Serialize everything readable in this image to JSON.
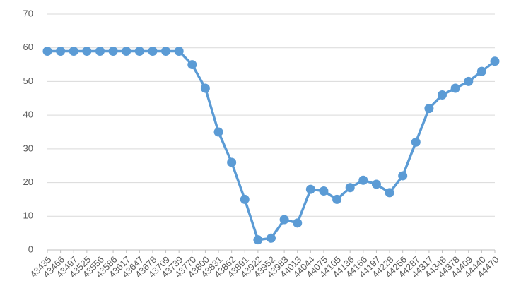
{
  "chart_data": {
    "type": "line",
    "categories": [
      "43435",
      "43466",
      "43497",
      "43525",
      "43556",
      "43586",
      "43617",
      "43647",
      "43678",
      "43709",
      "43739",
      "43770",
      "43800",
      "43831",
      "43862",
      "43891",
      "43922",
      "43952",
      "43983",
      "44013",
      "44044",
      "44075",
      "44105",
      "44136",
      "44166",
      "44197",
      "44228",
      "44256",
      "44287",
      "44317",
      "44348",
      "44378",
      "44409",
      "44440",
      "44470"
    ],
    "series": [
      {
        "color": "#5b9bd5",
        "values": [
          59,
          59,
          59,
          59,
          59,
          59,
          59,
          59,
          59,
          59,
          59,
          55,
          48,
          35,
          26,
          15,
          3,
          3.5,
          9,
          8,
          18,
          17.5,
          15,
          18.5,
          20.7,
          19.5,
          17,
          22,
          32,
          42,
          46,
          48,
          50,
          53,
          56
        ]
      }
    ],
    "ylim": [
      0,
      70
    ],
    "yticks": [
      0,
      10,
      20,
      30,
      40,
      50,
      60,
      70
    ],
    "grid": true
  }
}
